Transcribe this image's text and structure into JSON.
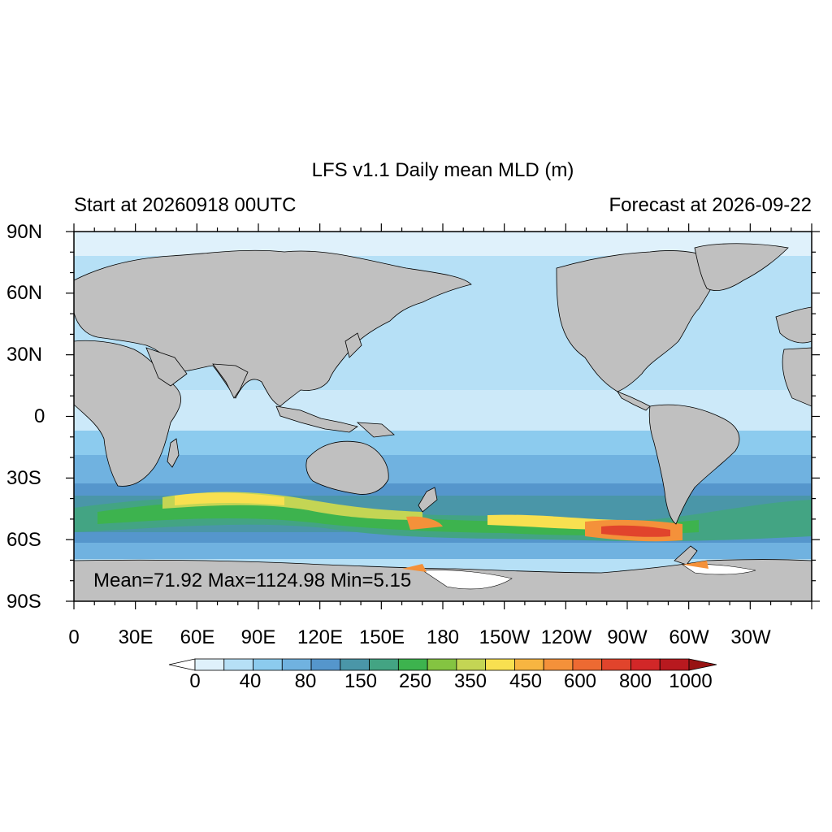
{
  "header": {
    "title": "LFS v1.1 Daily mean MLD (m)",
    "left_subtitle": "Start at 20260918 00UTC",
    "right_subtitle": "Forecast at 2026-09-22"
  },
  "map": {
    "projection": "cylindrical-equidistant",
    "field": "Daily mean mixed layer depth",
    "units": "m",
    "land_color": "#c0c0c0",
    "lon_range": [
      0,
      360
    ],
    "lat_range": [
      -90,
      90
    ],
    "lat_labels": [
      "90N",
      "60N",
      "30N",
      "0",
      "30S",
      "60S",
      "90S"
    ],
    "lon_labels": [
      "0",
      "30E",
      "60E",
      "90E",
      "120E",
      "150E",
      "180",
      "150W",
      "120W",
      "90W",
      "60W",
      "30W"
    ]
  },
  "stats": {
    "text": "Mean=71.92  Max=1124.98  Min=5.15",
    "mean": 71.92,
    "max": 1124.98,
    "min": 5.15
  },
  "colorbar": {
    "tick_labels": [
      "0",
      "40",
      "80",
      "150",
      "250",
      "350",
      "450",
      "600",
      "800",
      "1000"
    ],
    "colors": [
      "#ffffff",
      "#dff1fb",
      "#b6e0f6",
      "#8ccbee",
      "#70b2e0",
      "#5596cc",
      "#4a96a8",
      "#43a483",
      "#3db34e",
      "#84c441",
      "#c4d554",
      "#f8e050",
      "#f7b541",
      "#f4913a",
      "#ed6a32",
      "#e1442c",
      "#d22728",
      "#b8191f",
      "#981313"
    ],
    "lower_arrow_color": "#ffffff",
    "upper_arrow_color": "#981313"
  }
}
